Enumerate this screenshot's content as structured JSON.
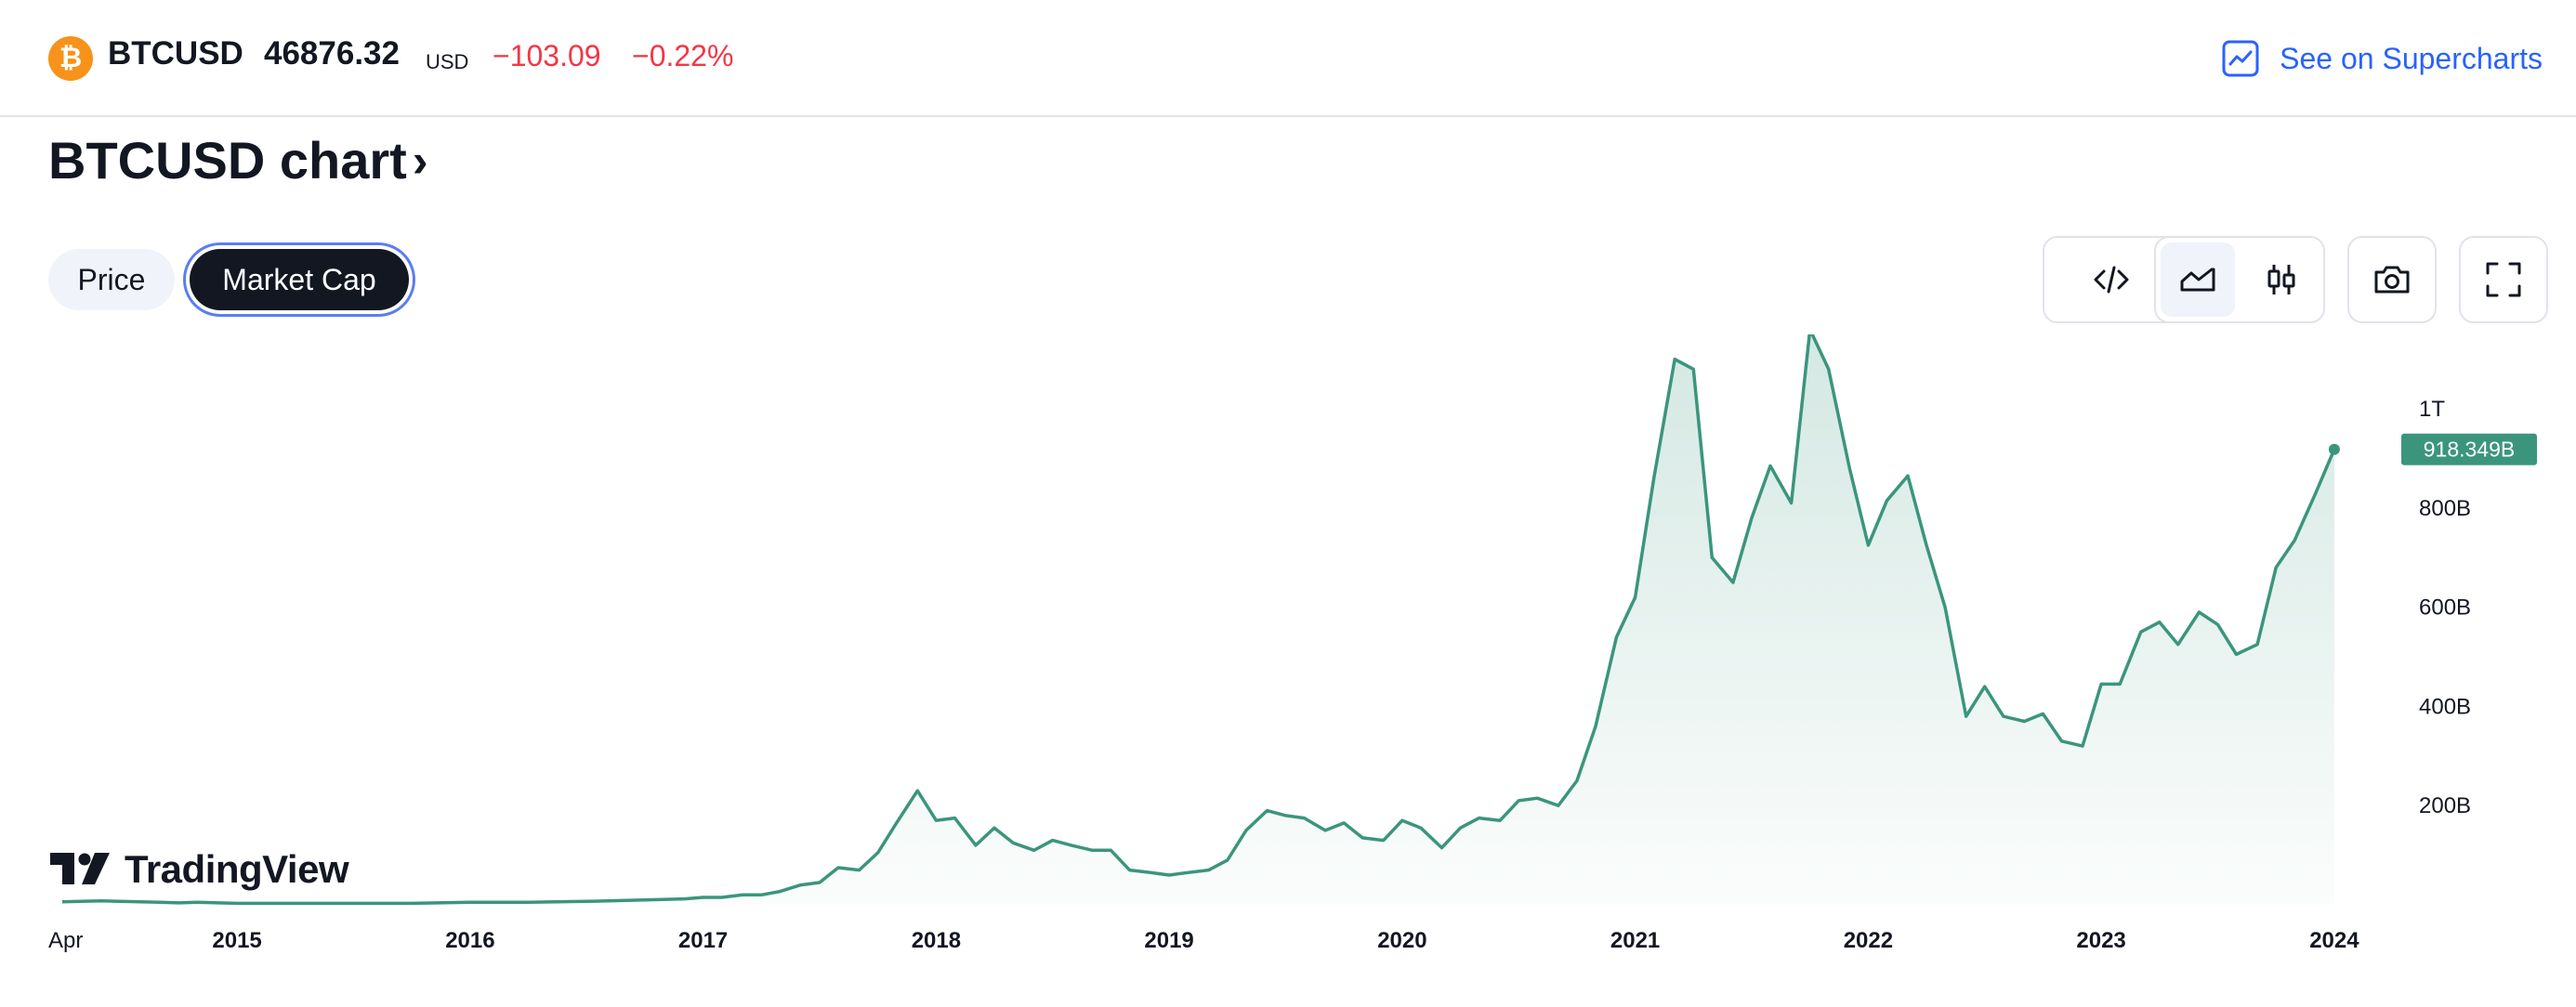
{
  "header": {
    "symbol": "BTCUSD",
    "price": "46876.32",
    "currency": "USD",
    "change": "−103.09",
    "change_pct": "−0.22%",
    "supercharts_label": "See on Supercharts",
    "logo_glyph": "₿"
  },
  "title": "BTCUSD chart",
  "title_chevron": "›",
  "tabs": [
    {
      "label": "Price",
      "active": false
    },
    {
      "label": "Market Cap",
      "active": true
    }
  ],
  "branding": {
    "logo_text": "TradingView"
  },
  "colors": {
    "line": "#3b957d",
    "fill": "#3b957d",
    "negative": "#f23645",
    "link": "#2962ff",
    "bitcoin": "#f7931a"
  },
  "chart_data": {
    "type": "area",
    "ylim": [
      0,
      1150
    ],
    "y_ticks": [
      {
        "value": 200,
        "label": "200B"
      },
      {
        "value": 400,
        "label": "400B"
      },
      {
        "value": 600,
        "label": "600B"
      },
      {
        "value": 800,
        "label": "800B"
      },
      {
        "value": 1000,
        "label": "1T"
      }
    ],
    "x_ticks": [
      {
        "t": 2014.25,
        "label": "Apr",
        "bold": false
      },
      {
        "t": 2015.0,
        "label": "2015",
        "bold": true
      },
      {
        "t": 2016.0,
        "label": "2016",
        "bold": true
      },
      {
        "t": 2017.0,
        "label": "2017",
        "bold": true
      },
      {
        "t": 2018.0,
        "label": "2018",
        "bold": true
      },
      {
        "t": 2019.0,
        "label": "2019",
        "bold": true
      },
      {
        "t": 2020.0,
        "label": "2020",
        "bold": true
      },
      {
        "t": 2021.0,
        "label": "2021",
        "bold": true
      },
      {
        "t": 2022.0,
        "label": "2022",
        "bold": true
      },
      {
        "t": 2023.0,
        "label": "2023",
        "bold": true
      },
      {
        "t": 2024.0,
        "label": "2024",
        "bold": true
      }
    ],
    "xlim": [
      2014.19,
      2024.2
    ],
    "last_value_label": "918.349B",
    "series": [
      {
        "unit": "B USD",
        "points": [
          [
            2014.25,
            6
          ],
          [
            2014.33,
            7
          ],
          [
            2014.42,
            8
          ],
          [
            2014.5,
            7
          ],
          [
            2014.58,
            6
          ],
          [
            2014.67,
            5
          ],
          [
            2014.75,
            4
          ],
          [
            2014.83,
            5
          ],
          [
            2014.92,
            4
          ],
          [
            2015.0,
            3
          ],
          [
            2015.25,
            3
          ],
          [
            2015.5,
            3
          ],
          [
            2015.75,
            3
          ],
          [
            2016.0,
            5
          ],
          [
            2016.25,
            5
          ],
          [
            2016.5,
            7
          ],
          [
            2016.75,
            10
          ],
          [
            2016.92,
            12
          ],
          [
            2017.0,
            15
          ],
          [
            2017.08,
            15
          ],
          [
            2017.17,
            20
          ],
          [
            2017.25,
            20
          ],
          [
            2017.33,
            27
          ],
          [
            2017.42,
            40
          ],
          [
            2017.5,
            45
          ],
          [
            2017.58,
            75
          ],
          [
            2017.67,
            70
          ],
          [
            2017.75,
            105
          ],
          [
            2017.83,
            165
          ],
          [
            2017.92,
            230
          ],
          [
            2018.0,
            170
          ],
          [
            2018.08,
            175
          ],
          [
            2018.17,
            120
          ],
          [
            2018.25,
            155
          ],
          [
            2018.33,
            125
          ],
          [
            2018.42,
            110
          ],
          [
            2018.5,
            130
          ],
          [
            2018.58,
            120
          ],
          [
            2018.67,
            110
          ],
          [
            2018.75,
            110
          ],
          [
            2018.83,
            70
          ],
          [
            2018.92,
            65
          ],
          [
            2019.0,
            60
          ],
          [
            2019.08,
            65
          ],
          [
            2019.17,
            70
          ],
          [
            2019.25,
            90
          ],
          [
            2019.33,
            150
          ],
          [
            2019.42,
            190
          ],
          [
            2019.5,
            180
          ],
          [
            2019.58,
            175
          ],
          [
            2019.67,
            150
          ],
          [
            2019.75,
            165
          ],
          [
            2019.83,
            135
          ],
          [
            2019.92,
            130
          ],
          [
            2020.0,
            170
          ],
          [
            2020.08,
            155
          ],
          [
            2020.17,
            115
          ],
          [
            2020.25,
            155
          ],
          [
            2020.33,
            175
          ],
          [
            2020.42,
            170
          ],
          [
            2020.5,
            210
          ],
          [
            2020.58,
            215
          ],
          [
            2020.67,
            200
          ],
          [
            2020.75,
            250
          ],
          [
            2020.83,
            360
          ],
          [
            2020.92,
            540
          ],
          [
            2021.0,
            620
          ],
          [
            2021.08,
            860
          ],
          [
            2021.17,
            1100
          ],
          [
            2021.25,
            1080
          ],
          [
            2021.33,
            700
          ],
          [
            2021.42,
            650
          ],
          [
            2021.5,
            780
          ],
          [
            2021.58,
            885
          ],
          [
            2021.67,
            810
          ],
          [
            2021.75,
            1160
          ],
          [
            2021.83,
            1080
          ],
          [
            2021.92,
            880
          ],
          [
            2022.0,
            725
          ],
          [
            2022.08,
            815
          ],
          [
            2022.17,
            865
          ],
          [
            2022.25,
            725
          ],
          [
            2022.33,
            600
          ],
          [
            2022.42,
            380
          ],
          [
            2022.5,
            440
          ],
          [
            2022.58,
            380
          ],
          [
            2022.67,
            370
          ],
          [
            2022.75,
            385
          ],
          [
            2022.83,
            330
          ],
          [
            2022.92,
            320
          ],
          [
            2023.0,
            445
          ],
          [
            2023.08,
            445
          ],
          [
            2023.17,
            550
          ],
          [
            2023.25,
            570
          ],
          [
            2023.33,
            525
          ],
          [
            2023.42,
            590
          ],
          [
            2023.5,
            565
          ],
          [
            2023.58,
            505
          ],
          [
            2023.67,
            525
          ],
          [
            2023.75,
            680
          ],
          [
            2023.83,
            735
          ],
          [
            2023.92,
            830
          ],
          [
            2024.0,
            918.349
          ]
        ]
      }
    ]
  }
}
